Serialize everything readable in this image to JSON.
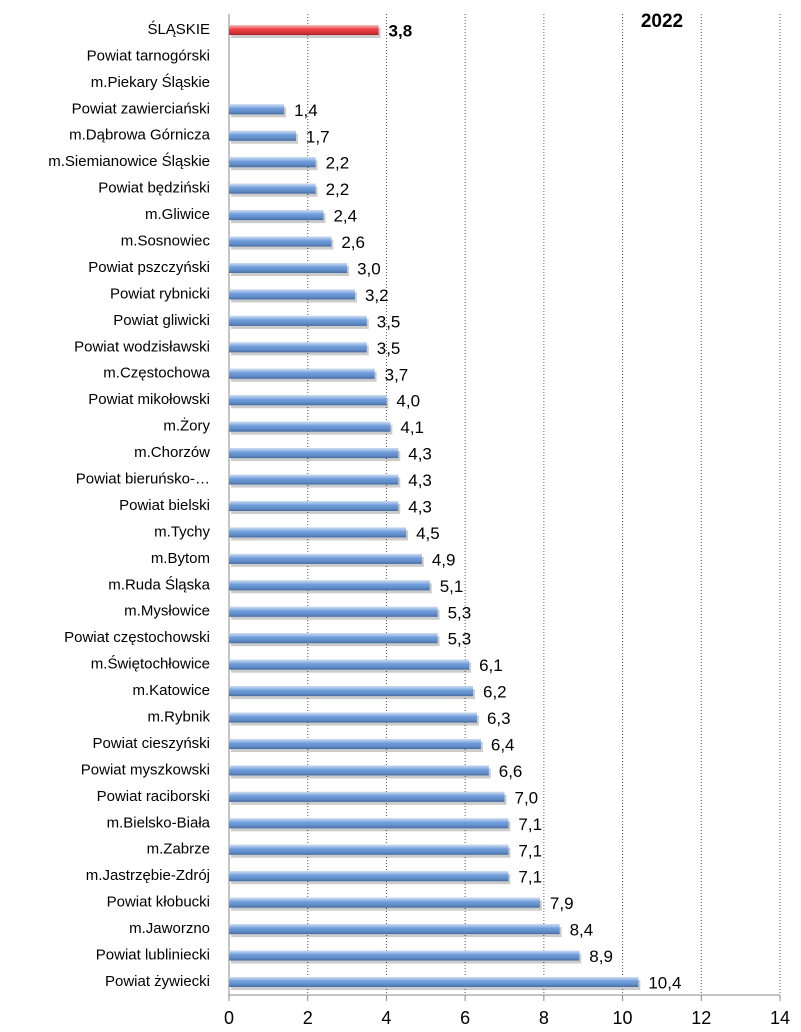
{
  "chart_data": {
    "type": "bar",
    "orientation": "horizontal",
    "title": "2022",
    "categories": [
      "ŚLĄSKIE",
      "Powiat tarnogórski",
      "m.Piekary Śląskie",
      "Powiat zawierciański",
      "m.Dąbrowa Górnicza",
      "m.Siemianowice Śląskie",
      "Powiat będziński",
      "m.Gliwice",
      "m.Sosnowiec",
      "Powiat pszczyński",
      "Powiat rybnicki",
      "Powiat gliwicki",
      "Powiat wodzisławski",
      "m.Częstochowa",
      "Powiat mikołowski",
      "m.Żory",
      "m.Chorzów",
      "Powiat bieruńsko-…",
      "Powiat bielski",
      "m.Tychy",
      "m.Bytom",
      "m.Ruda Śląska",
      "m.Mysłowice",
      "Powiat częstochowski",
      "m.Świętochłowice",
      "m.Katowice",
      "m.Rybnik",
      "Powiat cieszyński",
      "Powiat myszkowski",
      "Powiat raciborski",
      "m.Bielsko-Biała",
      "m.Zabrze",
      "m.Jastrzębie-Zdrój",
      "Powiat kłobucki",
      "m.Jaworzno",
      "Powiat lubliniecki",
      "Powiat żywiecki"
    ],
    "values": [
      3.8,
      null,
      null,
      1.4,
      1.7,
      2.2,
      2.2,
      2.4,
      2.6,
      3.0,
      3.2,
      3.5,
      3.5,
      3.7,
      4.0,
      4.1,
      4.3,
      4.3,
      4.3,
      4.5,
      4.9,
      5.1,
      5.3,
      5.3,
      6.1,
      6.2,
      6.3,
      6.4,
      6.6,
      7.0,
      7.1,
      7.1,
      7.1,
      7.9,
      8.4,
      8.9,
      10.4
    ],
    "value_labels": [
      "3,8",
      null,
      null,
      "1,4",
      "1,7",
      "2,2",
      "2,2",
      "2,4",
      "2,6",
      "3,0",
      "3,2",
      "3,5",
      "3,5",
      "3,7",
      "4,0",
      "4,1",
      "4,3",
      "4,3",
      "4,3",
      "4,5",
      "4,9",
      "5,1",
      "5,3",
      "5,3",
      "6,1",
      "6,2",
      "6,3",
      "6,4",
      "6,6",
      "7,0",
      "7,1",
      "7,1",
      "7,1",
      "7,9",
      "8,4",
      "8,9",
      "10,4"
    ],
    "colors": [
      "#e8262a",
      "#5b8fd6",
      "#5b8fd6",
      "#5b8fd6",
      "#5b8fd6",
      "#5b8fd6",
      "#5b8fd6",
      "#5b8fd6",
      "#5b8fd6",
      "#5b8fd6",
      "#5b8fd6",
      "#5b8fd6",
      "#5b8fd6",
      "#5b8fd6",
      "#5b8fd6",
      "#5b8fd6",
      "#5b8fd6",
      "#5b8fd6",
      "#5b8fd6",
      "#5b8fd6",
      "#5b8fd6",
      "#5b8fd6",
      "#5b8fd6",
      "#5b8fd6",
      "#5b8fd6",
      "#5b8fd6",
      "#5b8fd6",
      "#5b8fd6",
      "#5b8fd6",
      "#5b8fd6",
      "#5b8fd6",
      "#5b8fd6",
      "#5b8fd6",
      "#5b8fd6",
      "#5b8fd6",
      "#5b8fd6",
      "#5b8fd6"
    ],
    "xlim": [
      0,
      14
    ],
    "xticks": [
      0,
      2,
      4,
      6,
      8,
      10,
      12,
      14
    ],
    "grid": true
  }
}
